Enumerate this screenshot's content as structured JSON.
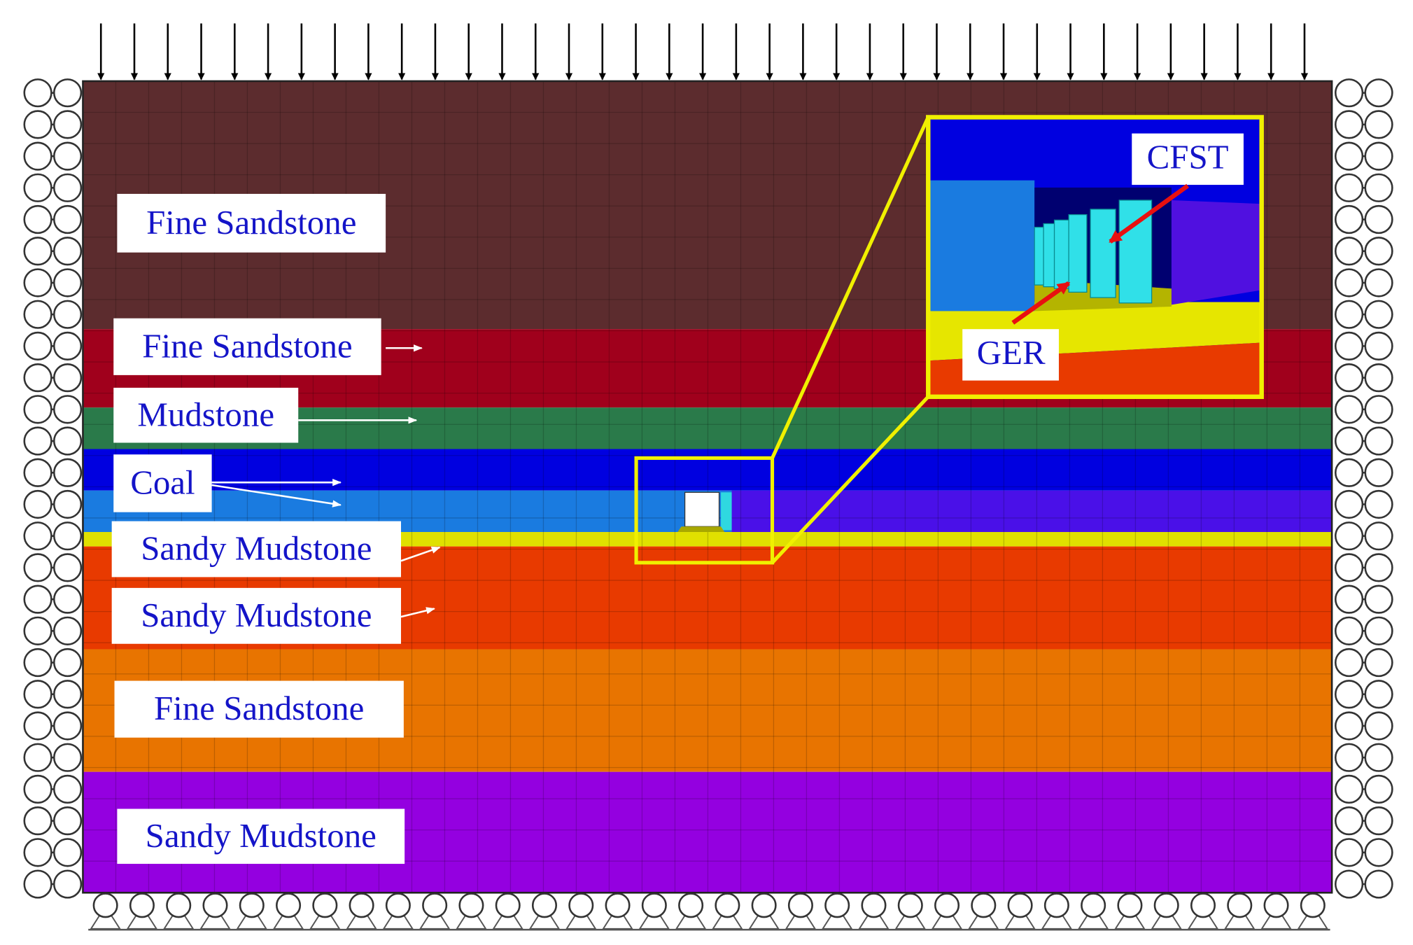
{
  "layers": [
    {
      "label": "Fine Sandstone"
    },
    {
      "label": "Fine Sandstone"
    },
    {
      "label": "Mudstone"
    },
    {
      "label": "Coal"
    },
    {
      "label": "Sandy Mudstone"
    },
    {
      "label": "Sandy Mudstone"
    },
    {
      "label": "Fine Sandstone"
    },
    {
      "label": "Sandy Mudstone"
    }
  ],
  "inset": {
    "labels": [
      "CFST",
      "GER"
    ]
  }
}
